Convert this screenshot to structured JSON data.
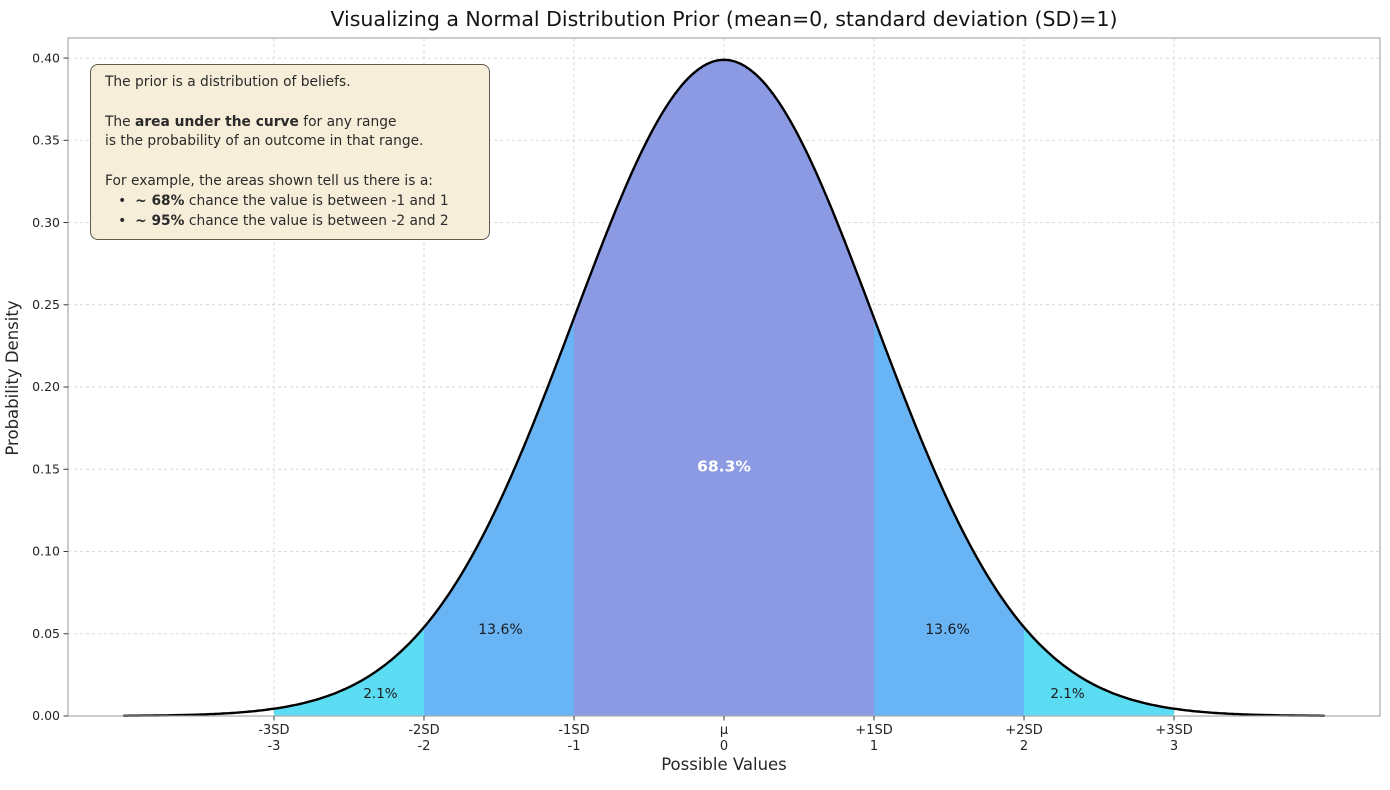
{
  "chart_data": {
    "type": "area",
    "title": "Visualizing a Normal Distribution Prior (mean=0, standard deviation (SD)=1)",
    "xlabel": "Possible Values",
    "ylabel": "Probability Density",
    "distribution": {
      "name": "normal",
      "mean": 0,
      "sd": 1,
      "peak_density": 0.3989
    },
    "xlim": [
      -4.373,
      4.373
    ],
    "ylim": [
      0,
      0.4122
    ],
    "curve_range": [
      -4,
      4
    ],
    "curve_color": "#000000",
    "grid": true,
    "grid_color": "#d9d9d9",
    "plot_border_color": "#ababab",
    "tick_color": "#3a3a3a",
    "tick_label_color": "#262626",
    "y_ticks": [
      {
        "value": 0.0,
        "label": "0.00"
      },
      {
        "value": 0.05,
        "label": "0.05"
      },
      {
        "value": 0.1,
        "label": "0.10"
      },
      {
        "value": 0.15,
        "label": "0.15"
      },
      {
        "value": 0.2,
        "label": "0.20"
      },
      {
        "value": 0.25,
        "label": "0.25"
      },
      {
        "value": 0.3,
        "label": "0.30"
      },
      {
        "value": 0.35,
        "label": "0.35"
      },
      {
        "value": 0.4,
        "label": "0.40"
      }
    ],
    "x_ticks": [
      {
        "value": -3,
        "line1": "-3SD",
        "line2": "-3"
      },
      {
        "value": -2,
        "line1": "-2SD",
        "line2": "-2"
      },
      {
        "value": -1,
        "line1": "-1SD",
        "line2": "-1"
      },
      {
        "value": 0,
        "line1": "μ",
        "line2": "0"
      },
      {
        "value": 1,
        "line1": "+1SD",
        "line2": "1"
      },
      {
        "value": 2,
        "line1": "+2SD",
        "line2": "2"
      },
      {
        "value": 3,
        "line1": "+3SD",
        "line2": "3"
      }
    ],
    "regions": [
      {
        "name": "left-tail-2sd-3sd",
        "from": -3,
        "to": -2,
        "percent": "2.1%",
        "fill": "#5cdcf2",
        "label_color": "#1a1a1a",
        "label_bold": false,
        "label_size": 13.5,
        "label_x": -2.29,
        "label_y": 0.0137
      },
      {
        "name": "left-1sd-2sd",
        "from": -2,
        "to": -1,
        "percent": "13.6%",
        "fill": "#69b4f5",
        "label_color": "#1a1a1a",
        "label_bold": false,
        "label_size": 14,
        "label_x": -1.49,
        "label_y": 0.0529
      },
      {
        "name": "center-within-1sd",
        "from": -1,
        "to": 1,
        "percent": "68.3%",
        "fill": "#8c9ae4",
        "label_color": "#ffffff",
        "label_bold": true,
        "label_size": 15.5,
        "label_x": 0,
        "label_y": 0.152
      },
      {
        "name": "right-1sd-2sd",
        "from": 1,
        "to": 2,
        "percent": "13.6%",
        "fill": "#69b4f5",
        "label_color": "#1a1a1a",
        "label_bold": false,
        "label_size": 14,
        "label_x": 1.49,
        "label_y": 0.0529
      },
      {
        "name": "right-tail-2sd-3sd",
        "from": 2,
        "to": 3,
        "percent": "2.1%",
        "fill": "#5cdcf2",
        "label_color": "#1a1a1a",
        "label_bold": false,
        "label_size": 13.5,
        "label_x": 2.29,
        "label_y": 0.0137
      }
    ],
    "annotation_box": {
      "bg": "#f6eed9",
      "border": "#5f5a4e",
      "text_color": "#2b2b2b",
      "lines": [
        [
          {
            "text": "The prior is a distribution of beliefs.",
            "bold": false
          }
        ],
        [],
        [
          {
            "text": "The ",
            "bold": false
          },
          {
            "text": "area under the curve",
            "bold": true
          },
          {
            "text": " for any range",
            "bold": false
          }
        ],
        [
          {
            "text": "is the probability of an outcome in that range.",
            "bold": false
          }
        ],
        [],
        [
          {
            "text": "For example, the areas shown tell us there is a:",
            "bold": false
          }
        ],
        [
          {
            "text": "   •  ",
            "bold": false
          },
          {
            "text": "~ 68%",
            "bold": true
          },
          {
            "text": " chance the value is between -1 and 1",
            "bold": false
          }
        ],
        [
          {
            "text": "   •  ",
            "bold": false
          },
          {
            "text": "~ 95%",
            "bold": true
          },
          {
            "text": " chance the value is between -2 and 2",
            "bold": false
          }
        ]
      ]
    }
  }
}
